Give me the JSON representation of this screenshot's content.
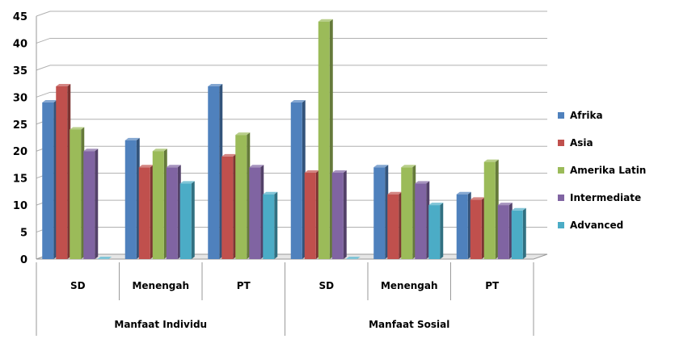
{
  "chart_data": {
    "type": "bar",
    "categories": [
      "SD",
      "Menengah",
      "PT",
      "SD",
      "Menengah",
      "PT"
    ],
    "groups": [
      {
        "label": "Manfaat Individu",
        "span": [
          0,
          2
        ]
      },
      {
        "label": "Manfaat Sosial",
        "span": [
          3,
          5
        ]
      }
    ],
    "series": [
      {
        "name": "Afrika",
        "color": "#4F81BD",
        "values": [
          29,
          22,
          32,
          29,
          17,
          12
        ]
      },
      {
        "name": "Asia",
        "color": "#C0504D",
        "values": [
          32,
          17,
          19,
          16,
          12,
          11
        ]
      },
      {
        "name": "Amerika Latin",
        "color": "#9BBB59",
        "values": [
          24,
          20,
          23,
          44,
          17,
          18
        ]
      },
      {
        "name": "Intermediate",
        "color": "#8064A2",
        "values": [
          20,
          17,
          17,
          16,
          14,
          10
        ]
      },
      {
        "name": "Advanced",
        "color": "#4BACC6",
        "values": [
          0,
          14,
          12,
          0,
          10,
          9
        ]
      }
    ],
    "y_ticks": [
      0,
      5,
      10,
      15,
      20,
      25,
      30,
      35,
      40,
      45
    ],
    "ylim": [
      0,
      45
    ],
    "grid": true,
    "legend": "right",
    "style": "3d-clustered-column"
  }
}
